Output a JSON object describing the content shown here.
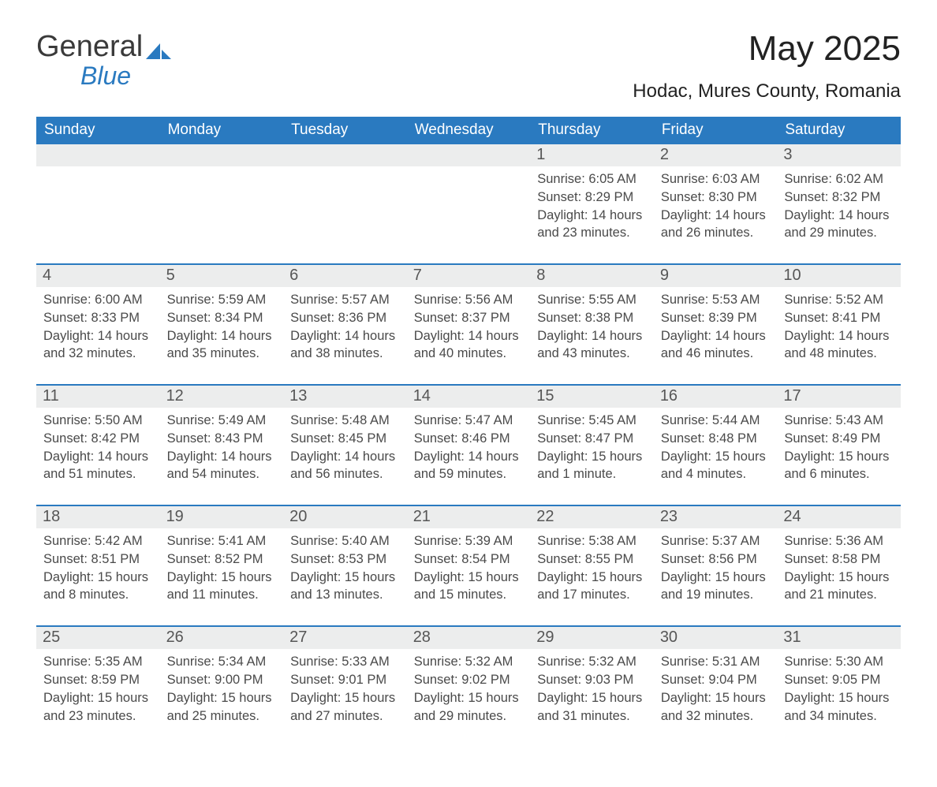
{
  "brand": {
    "general": "General",
    "blue": "Blue",
    "sail_color": "#2a7ac0"
  },
  "title": {
    "month_year": "May 2025",
    "location": "Hodac, Mures County, Romania"
  },
  "style": {
    "header_bg": "#2a7ac0",
    "row_gray": "#eceded",
    "row_border": "#2a7ac0",
    "text": "#2b2b2b"
  },
  "days_of_week": [
    "Sunday",
    "Monday",
    "Tuesday",
    "Wednesday",
    "Thursday",
    "Friday",
    "Saturday"
  ],
  "first_weekday_index": 4,
  "days": [
    {
      "n": 1,
      "sr": "6:05 AM",
      "ss": "8:29 PM",
      "dl": "14 hours and 23 minutes."
    },
    {
      "n": 2,
      "sr": "6:03 AM",
      "ss": "8:30 PM",
      "dl": "14 hours and 26 minutes."
    },
    {
      "n": 3,
      "sr": "6:02 AM",
      "ss": "8:32 PM",
      "dl": "14 hours and 29 minutes."
    },
    {
      "n": 4,
      "sr": "6:00 AM",
      "ss": "8:33 PM",
      "dl": "14 hours and 32 minutes."
    },
    {
      "n": 5,
      "sr": "5:59 AM",
      "ss": "8:34 PM",
      "dl": "14 hours and 35 minutes."
    },
    {
      "n": 6,
      "sr": "5:57 AM",
      "ss": "8:36 PM",
      "dl": "14 hours and 38 minutes."
    },
    {
      "n": 7,
      "sr": "5:56 AM",
      "ss": "8:37 PM",
      "dl": "14 hours and 40 minutes."
    },
    {
      "n": 8,
      "sr": "5:55 AM",
      "ss": "8:38 PM",
      "dl": "14 hours and 43 minutes."
    },
    {
      "n": 9,
      "sr": "5:53 AM",
      "ss": "8:39 PM",
      "dl": "14 hours and 46 minutes."
    },
    {
      "n": 10,
      "sr": "5:52 AM",
      "ss": "8:41 PM",
      "dl": "14 hours and 48 minutes."
    },
    {
      "n": 11,
      "sr": "5:50 AM",
      "ss": "8:42 PM",
      "dl": "14 hours and 51 minutes."
    },
    {
      "n": 12,
      "sr": "5:49 AM",
      "ss": "8:43 PM",
      "dl": "14 hours and 54 minutes."
    },
    {
      "n": 13,
      "sr": "5:48 AM",
      "ss": "8:45 PM",
      "dl": "14 hours and 56 minutes."
    },
    {
      "n": 14,
      "sr": "5:47 AM",
      "ss": "8:46 PM",
      "dl": "14 hours and 59 minutes."
    },
    {
      "n": 15,
      "sr": "5:45 AM",
      "ss": "8:47 PM",
      "dl": "15 hours and 1 minute."
    },
    {
      "n": 16,
      "sr": "5:44 AM",
      "ss": "8:48 PM",
      "dl": "15 hours and 4 minutes."
    },
    {
      "n": 17,
      "sr": "5:43 AM",
      "ss": "8:49 PM",
      "dl": "15 hours and 6 minutes."
    },
    {
      "n": 18,
      "sr": "5:42 AM",
      "ss": "8:51 PM",
      "dl": "15 hours and 8 minutes."
    },
    {
      "n": 19,
      "sr": "5:41 AM",
      "ss": "8:52 PM",
      "dl": "15 hours and 11 minutes."
    },
    {
      "n": 20,
      "sr": "5:40 AM",
      "ss": "8:53 PM",
      "dl": "15 hours and 13 minutes."
    },
    {
      "n": 21,
      "sr": "5:39 AM",
      "ss": "8:54 PM",
      "dl": "15 hours and 15 minutes."
    },
    {
      "n": 22,
      "sr": "5:38 AM",
      "ss": "8:55 PM",
      "dl": "15 hours and 17 minutes."
    },
    {
      "n": 23,
      "sr": "5:37 AM",
      "ss": "8:56 PM",
      "dl": "15 hours and 19 minutes."
    },
    {
      "n": 24,
      "sr": "5:36 AM",
      "ss": "8:58 PM",
      "dl": "15 hours and 21 minutes."
    },
    {
      "n": 25,
      "sr": "5:35 AM",
      "ss": "8:59 PM",
      "dl": "15 hours and 23 minutes."
    },
    {
      "n": 26,
      "sr": "5:34 AM",
      "ss": "9:00 PM",
      "dl": "15 hours and 25 minutes."
    },
    {
      "n": 27,
      "sr": "5:33 AM",
      "ss": "9:01 PM",
      "dl": "15 hours and 27 minutes."
    },
    {
      "n": 28,
      "sr": "5:32 AM",
      "ss": "9:02 PM",
      "dl": "15 hours and 29 minutes."
    },
    {
      "n": 29,
      "sr": "5:32 AM",
      "ss": "9:03 PM",
      "dl": "15 hours and 31 minutes."
    },
    {
      "n": 30,
      "sr": "5:31 AM",
      "ss": "9:04 PM",
      "dl": "15 hours and 32 minutes."
    },
    {
      "n": 31,
      "sr": "5:30 AM",
      "ss": "9:05 PM",
      "dl": "15 hours and 34 minutes."
    }
  ],
  "labels": {
    "sunrise": "Sunrise:",
    "sunset": "Sunset:",
    "daylight": "Daylight:"
  }
}
